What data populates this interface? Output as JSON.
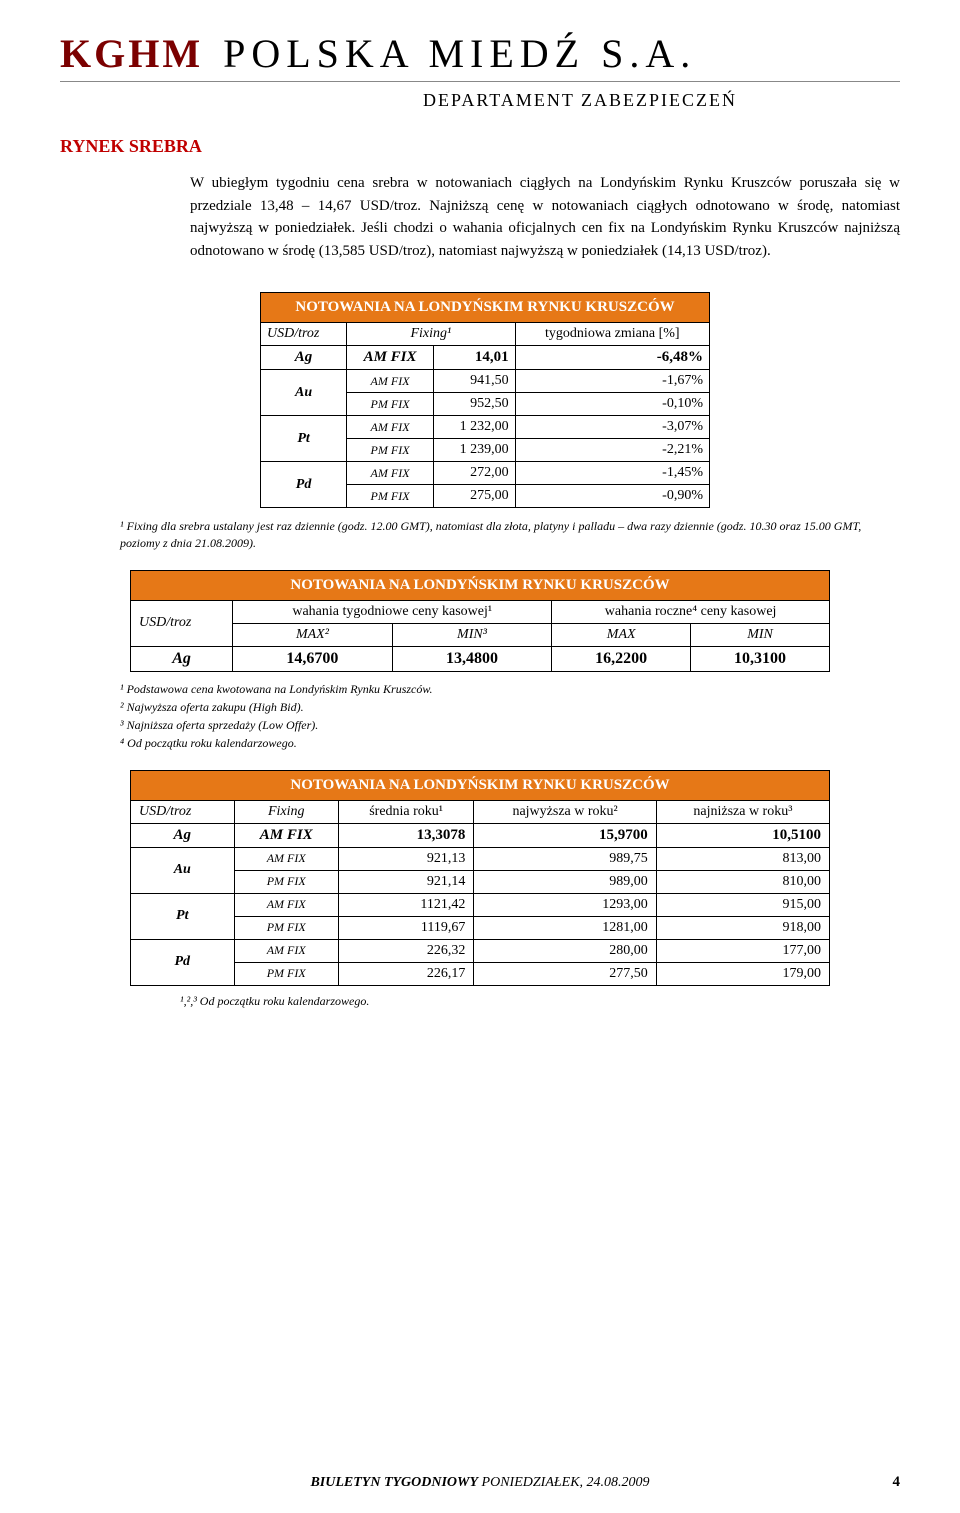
{
  "header": {
    "company_short": "KGHM",
    "company_rest": "POLSKA MIEDŹ S.A.",
    "department": "DEPARTAMENT ZABEZPIECZEŃ"
  },
  "section_title": "RYNEK SREBRA",
  "body_paragraph": "W ubiegłym tygodniu cena srebra w notowaniach ciągłych na Londyńskim Rynku Kruszców poruszała się w przedziale 13,48 – 14,67 USD/troz. Najniższą cenę w notowaniach ciągłych odnotowano w środę, natomiast najwyższą w poniedziałek. Jeśli chodzi o wahania oficjalnych cen fix na Londyńskim Rynku Kruszców najniższą odnotowano w środę (13,585 USD/troz), natomiast najwyższą w poniedziałek (14,13 USD/troz).",
  "table1": {
    "title": "NOTOWANIA NA LONDYŃSKIM RYNKU KRUSZCÓW",
    "col_unit": "USD/troz",
    "col_fixing": "Fixing¹",
    "col_change": "tygodniowa zmiana [%]",
    "rows": [
      {
        "metal": "Ag",
        "fix": "AM FIX",
        "val": "14,01",
        "pct": "-6,48%",
        "bold": true
      },
      {
        "metal": "Au",
        "fix": "AM FIX",
        "val": "941,50",
        "pct": "-1,67%"
      },
      {
        "metal": "",
        "fix": "PM FIX",
        "val": "952,50",
        "pct": "-0,10%"
      },
      {
        "metal": "Pt",
        "fix": "AM FIX",
        "val": "1 232,00",
        "pct": "-3,07%"
      },
      {
        "metal": "",
        "fix": "PM FIX",
        "val": "1 239,00",
        "pct": "-2,21%"
      },
      {
        "metal": "Pd",
        "fix": "AM FIX",
        "val": "272,00",
        "pct": "-1,45%"
      },
      {
        "metal": "",
        "fix": "PM FIX",
        "val": "275,00",
        "pct": "-0,90%"
      }
    ]
  },
  "footnote1": "¹ Fixing dla srebra ustalany jest raz dziennie (godz. 12.00 GMT), natomiast dla złota, platyny i palladu – dwa razy dziennie (godz. 10.30 oraz 15.00 GMT, poziomy z dnia 21.08.2009).",
  "table2": {
    "title": "NOTOWANIA NA LONDYŃSKIM RYNKU KRUSZCÓW",
    "col_unit": "USD/troz",
    "head_weekly": "wahania tygodniowe ceny kasowej¹",
    "head_yearly": "wahania roczne⁴ ceny kasowej",
    "col_max2": "MAX²",
    "col_min3": "MIN³",
    "col_max": "MAX",
    "col_min": "MIN",
    "row": {
      "metal": "Ag",
      "wmax": "14,6700",
      "wmin": "13,4800",
      "ymax": "16,2200",
      "ymin": "10,3100"
    }
  },
  "footnotes2": [
    "¹ Podstawowa cena kwotowana na Londyńskim Rynku Kruszców.",
    "² Najwyższa oferta zakupu (High Bid).",
    "³ Najniższa oferta sprzedaży (Low Offer).",
    "⁴ Od początku roku kalendarzowego."
  ],
  "table3": {
    "title": "NOTOWANIA NA LONDYŃSKIM RYNKU KRUSZCÓW",
    "col_unit": "USD/troz",
    "col_fixing": "Fixing",
    "col_avg": "średnia roku¹",
    "col_high": "najwyższa w roku²",
    "col_low": "najniższa w roku³",
    "rows": [
      {
        "metal": "Ag",
        "fix": "AM FIX",
        "avg": "13,3078",
        "high": "15,9700",
        "low": "10,5100",
        "bold": true
      },
      {
        "metal": "Au",
        "fix": "AM FIX",
        "avg": "921,13",
        "high": "989,75",
        "low": "813,00"
      },
      {
        "metal": "",
        "fix": "PM FIX",
        "avg": "921,14",
        "high": "989,00",
        "low": "810,00"
      },
      {
        "metal": "Pt",
        "fix": "AM FIX",
        "avg": "1121,42",
        "high": "1293,00",
        "low": "915,00"
      },
      {
        "metal": "",
        "fix": "PM FIX",
        "avg": "1119,67",
        "high": "1281,00",
        "low": "918,00"
      },
      {
        "metal": "Pd",
        "fix": "AM FIX",
        "avg": "226,32",
        "high": "280,00",
        "low": "177,00"
      },
      {
        "metal": "",
        "fix": "PM FIX",
        "avg": "226,17",
        "high": "277,50",
        "low": "179,00"
      }
    ]
  },
  "footnote3": "¹,²,³ Od początku roku kalendarzowego.",
  "footer": {
    "bold": "BIULETYN TYGODNIOWY",
    "rest": " PONIEDZIAŁEK, 24.08.2009",
    "page": "4"
  },
  "colors": {
    "accent_orange": "#e67817",
    "brand_red": "#7b0000",
    "section_red": "#c00000"
  }
}
